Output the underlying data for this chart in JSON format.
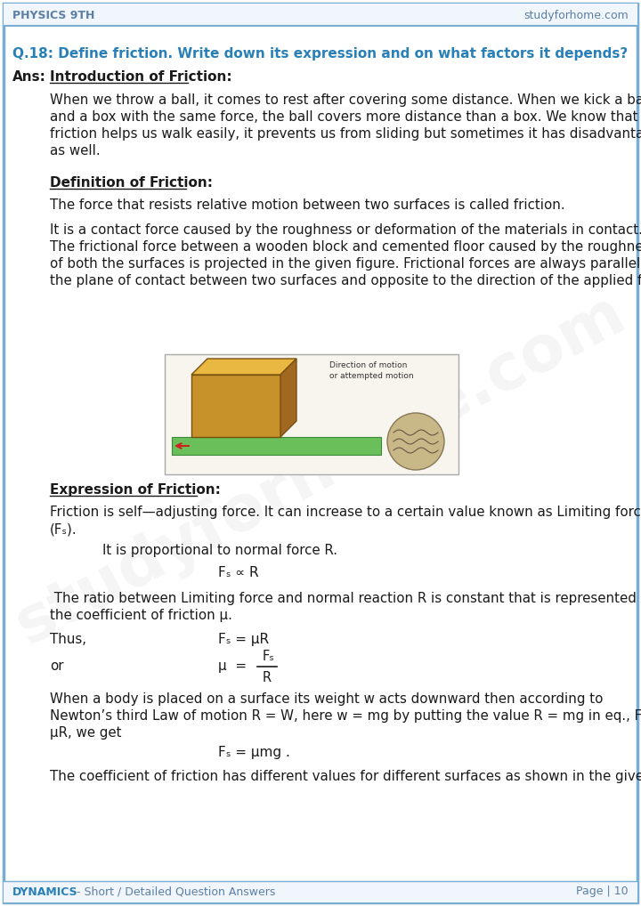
{
  "header_left": "PHYSICS 9TH",
  "header_right": "studyforhome.com",
  "footer_left_colored": "DYNAMICS",
  "footer_left_rest": " - Short / Detailed Question Answers",
  "footer_right": "Page | 10",
  "bg_color": "#ffffff",
  "border_color": "#7aadd4",
  "header_bg": "#f0f6fb",
  "footer_bg": "#f0f6fb",
  "question_color": "#2980b9",
  "question_text": "Q.18: Define friction. Write down its expression and on what factors it depends?",
  "ans_label": "Ans:",
  "section1_title": "Introduction of Friction:",
  "section1_body": [
    "When we throw a ball, it comes to rest after covering some distance. When we kick a bait",
    "and a box with the same force, the ball covers more distance than a box. We know that",
    "friction helps us walk easily, it prevents us from sliding but sometimes it has disadvantages",
    "as well."
  ],
  "section2_title": "Definition of Friction:",
  "section2_body1": "The force that resists relative motion between two surfaces is called friction.",
  "section2_body2": [
    "It is a contact force caused by the roughness or deformation of the materials in contact.",
    "The frictional force between a wooden block and cemented floor caused by the roughness",
    "of both the surfaces is projected in the given figure. Frictional forces are always parallel to",
    "the plane of contact between two surfaces and opposite to the direction of the applied force."
  ],
  "section3_title": "Expression of Friction:",
  "section3_body1": [
    "Friction is self—adjusting force. It can increase to a certain value known as Limiting force",
    "(Fₛ)."
  ],
  "section3_body2": "It is proportional to normal force R.",
  "section3_formula1": "Fₛ ∝ R",
  "section3_body3": " The ratio between Limiting force and normal reaction R is constant that is represented by",
  "section3_body3b": "the coefficient of friction μ.",
  "section3_thus_label": "Thus,",
  "section3_formula2": "Fₛ = μR",
  "section3_or_label": "or",
  "section3_formula3_num": "Fₛ",
  "section3_formula3_den": "R",
  "section3_formula3_eq": "μ  = ",
  "section3_body4": [
    "When a body is placed on a surface its weight w acts downward then according to",
    "Newton’s third Law of motion R = W, here w = mg by putting the value R = mg in eq., Fₛ =",
    "μR, we get"
  ],
  "section3_formula4": "Fₛ = μmg .",
  "section3_body5": "The coefficient of friction has different values for different surfaces as shown in the given table.",
  "text_color": "#1a1a1a",
  "body_font_size": 11.2,
  "section_title_font_size": 11.5,
  "question_font_size": 11.5,
  "watermark_text": "studyforhome.com"
}
